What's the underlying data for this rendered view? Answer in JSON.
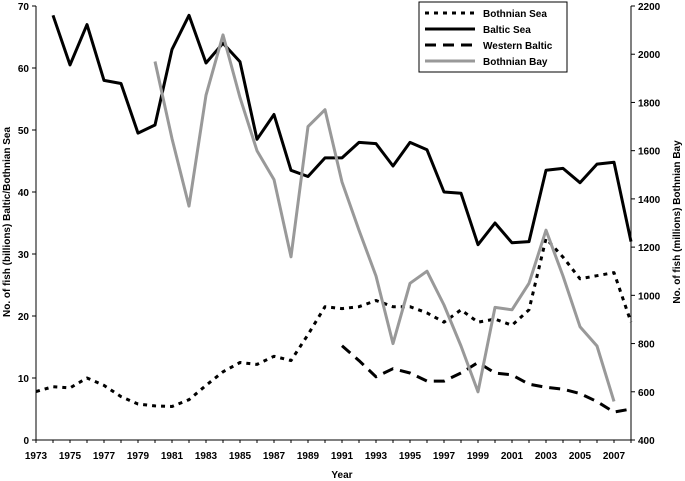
{
  "chart_data": {
    "type": "line",
    "xlabel": "Year",
    "ylabel_left": "No. of fish (billions) Baltic/Bothnian Sea",
    "ylabel_right": "No. of fish (millions) Bothnian Bay",
    "x_ticks": [
      1973,
      1975,
      1977,
      1979,
      1981,
      1983,
      1985,
      1987,
      1989,
      1991,
      1993,
      1995,
      1997,
      1999,
      2001,
      2003,
      2005,
      2007
    ],
    "xlim": [
      1973,
      2008
    ],
    "ylim_left": [
      0,
      70
    ],
    "y_ticks_left": [
      0,
      10,
      20,
      30,
      40,
      50,
      60,
      70
    ],
    "ylim_right": [
      400,
      2200
    ],
    "y_ticks_right": [
      400,
      600,
      800,
      1000,
      1200,
      1400,
      1600,
      1800,
      2000,
      2200
    ],
    "legend_position": "top-right",
    "series": [
      {
        "name": "Bothnian Sea",
        "axis": "left",
        "style": "dotted",
        "color": "#000000",
        "x": [
          1973,
          1974,
          1975,
          1976,
          1977,
          1978,
          1979,
          1980,
          1981,
          1982,
          1983,
          1984,
          1985,
          1986,
          1987,
          1988,
          1989,
          1990,
          1991,
          1992,
          1993,
          1994,
          1995,
          1996,
          1997,
          1998,
          1999,
          2000,
          2001,
          2002,
          2003,
          2004,
          2005,
          2006,
          2007,
          2008
        ],
        "y": [
          7.8,
          8.6,
          8.4,
          10.0,
          8.8,
          7.0,
          5.8,
          5.5,
          5.4,
          6.5,
          8.8,
          11.0,
          12.5,
          12.2,
          13.5,
          12.8,
          17.0,
          21.5,
          21.2,
          21.5,
          22.5,
          21.5,
          21.5,
          20.5,
          19.0,
          21.0,
          19.0,
          19.5,
          18.5,
          21.0,
          32.5,
          29.5,
          26.0,
          26.5,
          27.0,
          19.0
        ]
      },
      {
        "name": "Baltic Sea",
        "axis": "left",
        "style": "solid",
        "color": "#000000",
        "x": [
          1974,
          1975,
          1976,
          1977,
          1978,
          1979,
          1980,
          1981,
          1982,
          1983,
          1984,
          1985,
          1986,
          1987,
          1988,
          1989,
          1990,
          1991,
          1992,
          1993,
          1994,
          1995,
          1996,
          1997,
          1998,
          1999,
          2000,
          2001,
          2002,
          2003,
          2004,
          2005,
          2006,
          2007,
          2008
        ],
        "y": [
          68.5,
          60.5,
          67.0,
          58.0,
          57.5,
          49.5,
          50.8,
          63.0,
          68.5,
          60.8,
          64.0,
          61.0,
          48.5,
          52.5,
          43.5,
          42.5,
          45.5,
          45.5,
          48.0,
          47.8,
          44.2,
          48.0,
          46.8,
          40.0,
          39.8,
          31.5,
          35.0,
          31.8,
          32.0,
          43.5,
          43.8,
          41.5,
          44.5,
          44.8,
          32.0
        ]
      },
      {
        "name": "Western Baltic",
        "axis": "left",
        "style": "dashed",
        "color": "#000000",
        "x": [
          1991,
          1992,
          1993,
          1994,
          1995,
          1996,
          1997,
          1998,
          1999,
          2000,
          2001,
          2002,
          2003,
          2004,
          2005,
          2006,
          2007,
          2008
        ],
        "y": [
          15.2,
          12.8,
          10.2,
          11.5,
          10.8,
          9.5,
          9.5,
          10.8,
          12.5,
          10.8,
          10.5,
          9.0,
          8.5,
          8.2,
          7.5,
          6.2,
          4.5,
          5.0
        ]
      },
      {
        "name": "Bothnian Bay",
        "axis": "right",
        "style": "solid",
        "color": "#999999",
        "x": [
          1980,
          1981,
          1982,
          1983,
          1984,
          1985,
          1986,
          1987,
          1988,
          1989,
          1990,
          1991,
          1992,
          1993,
          1994,
          1995,
          1996,
          1997,
          1998,
          1999,
          2000,
          2001,
          2002,
          2003,
          2004,
          2005,
          2006,
          2007
        ],
        "y": [
          1970,
          1650,
          1370,
          1830,
          2080,
          1820,
          1600,
          1480,
          1160,
          1700,
          1770,
          1470,
          1270,
          1080,
          800,
          1050,
          1100,
          960,
          790,
          600,
          950,
          940,
          1050,
          1270,
          1080,
          870,
          790,
          560
        ]
      }
    ]
  }
}
